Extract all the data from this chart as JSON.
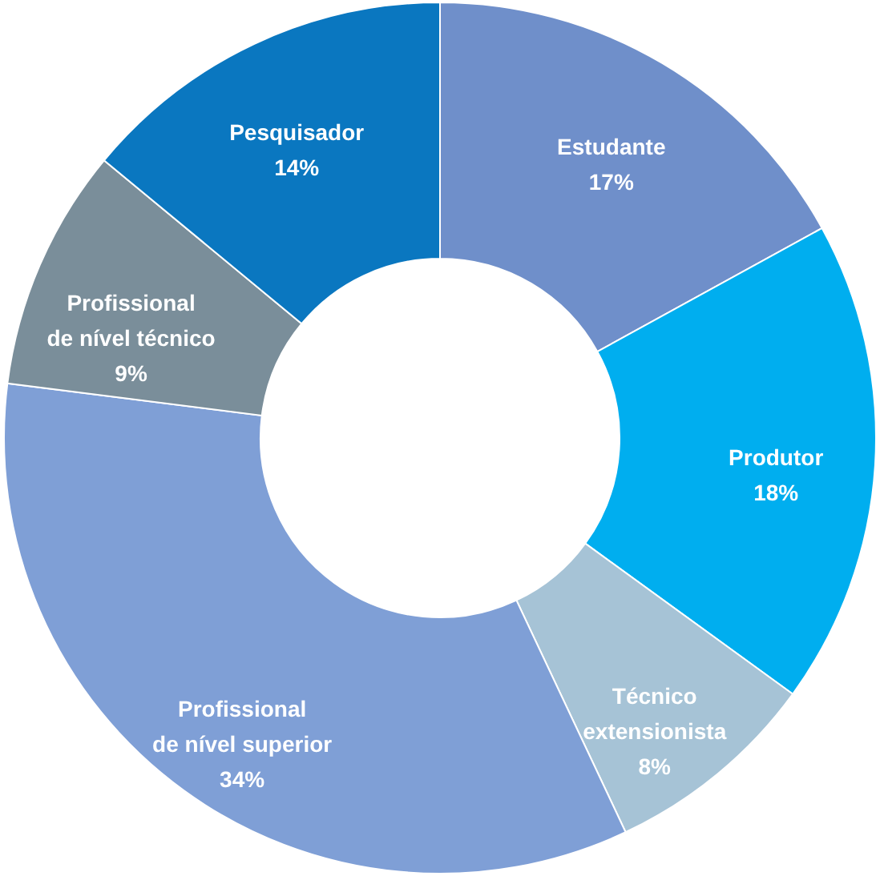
{
  "chart_data": {
    "type": "donut",
    "categories": [
      "Estudante",
      "Produtor",
      "Técnico\nextensionista",
      "Profissional\nde nível superior",
      "Profissional\nde nível técnico",
      "Pesquisador"
    ],
    "values": [
      17,
      18,
      8,
      34,
      9,
      14
    ],
    "value_labels": [
      "17%",
      "18%",
      "8%",
      "34%",
      "9%",
      "14%"
    ],
    "colors": [
      "#6f8fca",
      "#00aeef",
      "#a6c3d6",
      "#7f9fd6",
      "#7a8e9a",
      "#0a77c0"
    ]
  }
}
